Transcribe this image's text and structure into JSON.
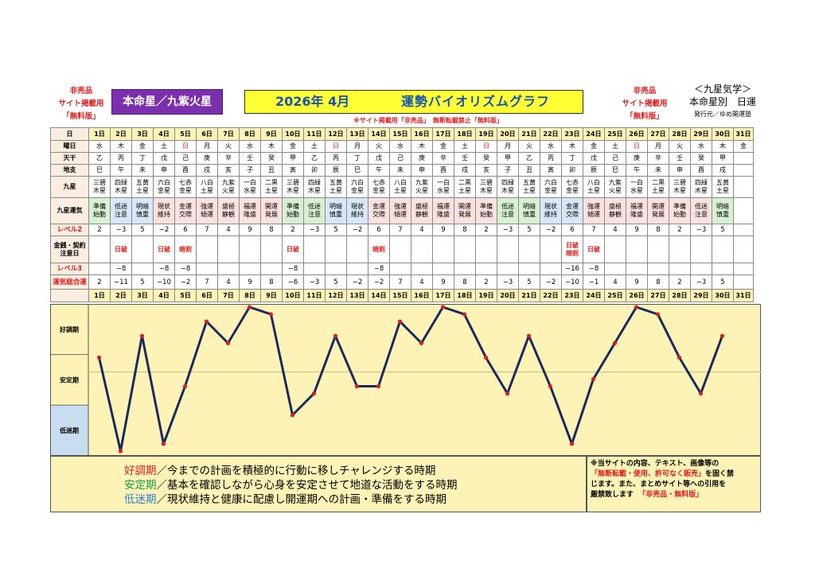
{
  "header": {
    "left_notice": [
      "非売品",
      "サイト掲載用",
      "「無料版」"
    ],
    "honmei": "本命星／九紫火星",
    "year_month": "2026年 4月",
    "title": "運勢バイオリズムグラフ",
    "right_notice": [
      "非売品",
      "サイト掲載用",
      "「無料版」"
    ],
    "kyusei_lines": [
      "＜九星気学＞",
      "本命星別　日運"
    ],
    "publisher": "発行元／ゆめ開運塾",
    "banner": "※サイト掲載用「非売品」　無断転載禁止「無料版」"
  },
  "table": {
    "labels": {
      "day": "日",
      "weekday": "曜日",
      "kan": "天干",
      "shi": "地支",
      "kyusei": "九星",
      "unki": "九星運気",
      "level2": "レベル2",
      "money": "金銭・契約注意日",
      "level3": "レベル3",
      "total": "運気総合運"
    },
    "days": [
      "1日",
      "2日",
      "3日",
      "4日",
      "5日",
      "6日",
      "7日",
      "8日",
      "9日",
      "10日",
      "11日",
      "12日",
      "13日",
      "14日",
      "15日",
      "16日",
      "17日",
      "18日",
      "19日",
      "20日",
      "21日",
      "22日",
      "23日",
      "24日",
      "25日",
      "26日",
      "27日",
      "28日",
      "29日",
      "30日",
      "31日"
    ],
    "weekdays": [
      "水",
      "木",
      "金",
      "土",
      "日",
      "月",
      "火",
      "水",
      "木",
      "金",
      "土",
      "日",
      "月",
      "火",
      "水",
      "木",
      "金",
      "土",
      "日",
      "月",
      "火",
      "水",
      "木",
      "金",
      "土",
      "日",
      "月",
      "火",
      "水",
      "木",
      "金"
    ],
    "holidays": [
      4,
      11,
      18,
      25
    ],
    "kan": [
      "乙",
      "丙",
      "丁",
      "戊",
      "己",
      "庚",
      "辛",
      "壬",
      "癸",
      "甲",
      "乙",
      "丙",
      "丁",
      "戊",
      "己",
      "庚",
      "辛",
      "壬",
      "癸",
      "甲",
      "乙",
      "丙",
      "丁",
      "戊",
      "己",
      "庚",
      "辛",
      "壬",
      "癸",
      "甲",
      ""
    ],
    "shi": [
      "巳",
      "午",
      "未",
      "申",
      "酉",
      "戌",
      "亥",
      "子",
      "丑",
      "寅",
      "卯",
      "辰",
      "巳",
      "午",
      "未",
      "申",
      "酉",
      "戌",
      "亥",
      "子",
      "丑",
      "寅",
      "卯",
      "辰",
      "巳",
      "午",
      "未",
      "申",
      "酉",
      "戌",
      ""
    ],
    "kyusei": [
      [
        "三碧",
        "木星"
      ],
      [
        "四緑",
        "木星"
      ],
      [
        "五黄",
        "土星"
      ],
      [
        "六白",
        "金星"
      ],
      [
        "七赤",
        "金星"
      ],
      [
        "八白",
        "土星"
      ],
      [
        "九紫",
        "火星"
      ],
      [
        "一白",
        "水星"
      ],
      [
        "二黒",
        "土星"
      ],
      [
        "三碧",
        "木星"
      ],
      [
        "四緑",
        "木星"
      ],
      [
        "五黄",
        "土星"
      ],
      [
        "六白",
        "金星"
      ],
      [
        "七赤",
        "金星"
      ],
      [
        "八白",
        "土星"
      ],
      [
        "九紫",
        "火星"
      ],
      [
        "一白",
        "水星"
      ],
      [
        "二黒",
        "土星"
      ],
      [
        "三碧",
        "木星"
      ],
      [
        "四緑",
        "木星"
      ],
      [
        "五黄",
        "土星"
      ],
      [
        "六白",
        "金星"
      ],
      [
        "七赤",
        "金星"
      ],
      [
        "八白",
        "土星"
      ],
      [
        "九紫",
        "火星"
      ],
      [
        "一白",
        "水星"
      ],
      [
        "二黒",
        "土星"
      ],
      [
        "三碧",
        "木星"
      ],
      [
        "四緑",
        "木星"
      ],
      [
        "五黄",
        "土星"
      ],
      [
        "",
        ""
      ]
    ],
    "unki": [
      [
        "準備",
        "始動"
      ],
      [
        "低迷",
        "注意"
      ],
      [
        "明暗",
        "慎重"
      ],
      [
        "現状",
        "維持"
      ],
      [
        "金運",
        "交際"
      ],
      [
        "強運",
        "傾運"
      ],
      [
        "盛極",
        "静観"
      ],
      [
        "福運",
        "隆盛"
      ],
      [
        "開運",
        "発展"
      ],
      [
        "準備",
        "始動"
      ],
      [
        "低迷",
        "注意"
      ],
      [
        "明暗",
        "慎重"
      ],
      [
        "現状",
        "維持"
      ],
      [
        "金運",
        "交際"
      ],
      [
        "強運",
        "傾運"
      ],
      [
        "盛極",
        "静観"
      ],
      [
        "福運",
        "隆盛"
      ],
      [
        "開運",
        "発展"
      ],
      [
        "準備",
        "始動"
      ],
      [
        "低迷",
        "注意"
      ],
      [
        "明暗",
        "慎重"
      ],
      [
        "現状",
        "維持"
      ],
      [
        "金運",
        "交際"
      ],
      [
        "強運",
        "傾運"
      ],
      [
        "盛極",
        "静観"
      ],
      [
        "福運",
        "隆盛"
      ],
      [
        "開運",
        "発展"
      ],
      [
        "準備",
        "始動"
      ],
      [
        "低迷",
        "注意"
      ],
      [
        "明暗",
        "慎重"
      ],
      [
        "",
        ""
      ]
    ],
    "level2": [
      "2",
      "−3",
      "5",
      "−2",
      "6",
      "7",
      "4",
      "9",
      "8",
      "2",
      "−3",
      "5",
      "−2",
      "6",
      "7",
      "4",
      "9",
      "8",
      "2",
      "−3",
      "5",
      "−2",
      "6",
      "7",
      "4",
      "9",
      "8",
      "2",
      "−3",
      "5",
      ""
    ],
    "money": [
      [
        "",
        ""
      ],
      [
        "日破",
        ""
      ],
      [
        "",
        ""
      ],
      [
        "日破",
        ""
      ],
      [
        "暗剣",
        ""
      ],
      [
        "",
        ""
      ],
      [
        "",
        ""
      ],
      [
        "",
        ""
      ],
      [
        "",
        ""
      ],
      [
        "日破",
        ""
      ],
      [
        "",
        ""
      ],
      [
        "",
        ""
      ],
      [
        "",
        ""
      ],
      [
        "暗剣",
        ""
      ],
      [
        "",
        ""
      ],
      [
        "",
        ""
      ],
      [
        "",
        ""
      ],
      [
        "",
        ""
      ],
      [
        "",
        ""
      ],
      [
        "",
        ""
      ],
      [
        "",
        ""
      ],
      [
        "",
        ""
      ],
      [
        "日破",
        "暗剣"
      ],
      [
        "日破",
        ""
      ],
      [
        "",
        ""
      ],
      [
        "",
        ""
      ],
      [
        "",
        ""
      ],
      [
        "",
        ""
      ],
      [
        "",
        ""
      ],
      [
        "",
        ""
      ],
      [
        "",
        ""
      ]
    ],
    "level3": [
      "",
      "−8",
      "",
      "−8",
      "−8",
      "",
      "",
      "",
      "",
      "−8",
      "",
      "",
      "",
      "−8",
      "",
      "",
      "",
      "",
      "",
      "",
      "",
      "",
      "−16",
      "−8",
      "",
      "",
      "",
      "",
      "",
      "",
      ""
    ],
    "total": [
      "2",
      "−11",
      "5",
      "−10",
      "−2",
      "7",
      "4",
      "9",
      "8",
      "−6",
      "−3",
      "5",
      "−2",
      "−2",
      "7",
      "4",
      "9",
      "8",
      "2",
      "−3",
      "5",
      "−2",
      "−10",
      "−1",
      "4",
      "9",
      "8",
      "2",
      "−3",
      "5",
      ""
    ]
  },
  "chart_data": {
    "type": "line",
    "x": [
      1,
      2,
      3,
      4,
      5,
      6,
      7,
      8,
      9,
      10,
      11,
      12,
      13,
      14,
      15,
      16,
      17,
      18,
      19,
      20,
      21,
      22,
      23,
      24,
      25,
      26,
      27,
      28,
      29,
      30
    ],
    "series": [
      {
        "values": [
          2,
          -11,
          5,
          -10,
          -2,
          7,
          4,
          9,
          8,
          -6,
          -3,
          5,
          -2,
          -2,
          7,
          4,
          9,
          8,
          2,
          -3,
          5,
          -2,
          -10,
          -1,
          4,
          9,
          8,
          2,
          -3,
          5
        ]
      }
    ],
    "ylim": [
      -11,
      9
    ],
    "bands": [
      {
        "label": "好調期",
        "color": "#fdf3b6"
      },
      {
        "label": "安定期",
        "color": "#fdf3b6"
      },
      {
        "label": "低迷期",
        "color": "#c9ddf0"
      }
    ],
    "line_color": "#1a2a5e",
    "marker_color": "#d42020",
    "grid": false
  },
  "legend": [
    {
      "term": "好調期",
      "color": "#e0201f",
      "text": "／今までの計画を積極的に行動に移しチャレンジする時期"
    },
    {
      "term": "安定期",
      "color": "#16a34a",
      "text": "／基本を確認しながら心身を安定させて地道な活動をする時期"
    },
    {
      "term": "低迷期",
      "color": "#2f7fd1",
      "text": "／現状維持と健康に配慮し開運期への計画・準備をする時期"
    }
  ],
  "notice": {
    "line1": "※当サイトの内容、テキスト、画像等の",
    "line2_red": "「無断転載・使用、許可なく販売」",
    "line2_rest": "を固く禁",
    "line3": "じます。また、まとめサイト等への引用を",
    "line4": "厳禁致します",
    "line4_red": "「非売品・無料版」"
  }
}
